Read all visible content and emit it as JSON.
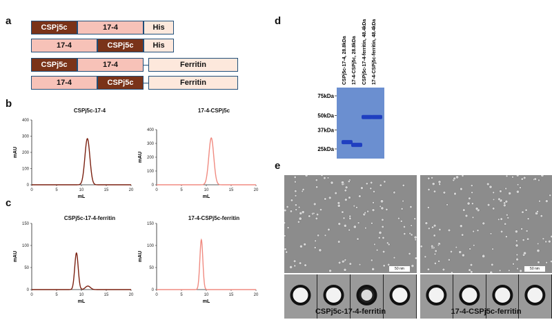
{
  "panel_labels": {
    "a": "a",
    "b": "b",
    "c": "c",
    "d": "d",
    "e": "e"
  },
  "constructs": [
    {
      "segments": [
        {
          "label": "CSPj5c",
          "color": "#7a3319",
          "text_color": "#ffffff"
        },
        {
          "label": "17-4",
          "color": "#f7c2b8",
          "text_color": "#111111"
        },
        {
          "label": "His",
          "color": "#fde8dc",
          "text_color": "#111111"
        }
      ]
    },
    {
      "segments": [
        {
          "label": "17-4",
          "color": "#f7c2b8",
          "text_color": "#111111"
        },
        {
          "label": "CSPj5c",
          "color": "#7a3319",
          "text_color": "#ffffff"
        },
        {
          "label": "His",
          "color": "#fde8dc",
          "text_color": "#111111"
        }
      ]
    },
    {
      "segments": [
        {
          "label": "CSPj5c",
          "color": "#7a3319",
          "text_color": "#ffffff"
        },
        {
          "label": "17-4",
          "color": "#f7c2b8",
          "text_color": "#111111"
        },
        {
          "label": "Ferritin",
          "color": "#fde8dc",
          "text_color": "#111111"
        }
      ]
    },
    {
      "segments": [
        {
          "label": "17-4",
          "color": "#f7c2b8",
          "text_color": "#111111"
        },
        {
          "label": "CSPj5c",
          "color": "#7a3319",
          "text_color": "#ffffff"
        },
        {
          "label": "Ferritin",
          "color": "#fde8dc",
          "text_color": "#111111"
        }
      ]
    }
  ],
  "chart_data": [
    {
      "type": "line",
      "title": "CSPj5c-17-4",
      "xlabel": "mL",
      "ylabel": "mAU",
      "xlim": [
        0,
        20
      ],
      "ylim": [
        0,
        400
      ],
      "xticks": [
        0,
        5,
        10,
        15,
        20
      ],
      "yticks": [
        0,
        100,
        200,
        300,
        400
      ],
      "color": "#7a1f0f",
      "series": [
        {
          "peak_x": 11.2,
          "peak_y": 285,
          "width": 0.5
        }
      ]
    },
    {
      "type": "line",
      "title": "17-4-CSPj5c",
      "xlabel": "mL",
      "ylabel": "mAU",
      "xlim": [
        0,
        20
      ],
      "ylim": [
        0,
        400
      ],
      "xticks": [
        0,
        5,
        10,
        15,
        20
      ],
      "yticks": [
        0,
        100,
        200,
        300,
        400
      ],
      "color": "#f08a80",
      "series": [
        {
          "peak_x": 11.0,
          "peak_y": 340,
          "width": 0.5
        }
      ]
    },
    {
      "type": "line",
      "title": "CSPj5c-17-4-ferritin",
      "xlabel": "mL",
      "ylabel": "mAU",
      "xlim": [
        0,
        20
      ],
      "ylim": [
        0,
        150
      ],
      "xticks": [
        0,
        5,
        10,
        15,
        20
      ],
      "yticks": [
        0,
        50,
        100,
        150
      ],
      "color": "#7a1f0f",
      "series": [
        {
          "peak_x": 9.0,
          "peak_y": 83,
          "width": 0.35
        },
        {
          "peak_x": 11.3,
          "peak_y": 8,
          "width": 0.5
        }
      ]
    },
    {
      "type": "line",
      "title": "17-4-CSPj5c-ferritin",
      "xlabel": "mL",
      "ylabel": "mAU",
      "xlim": [
        0,
        20
      ],
      "ylim": [
        0,
        150
      ],
      "xticks": [
        0,
        5,
        10,
        15,
        20
      ],
      "yticks": [
        0,
        50,
        100,
        150
      ],
      "color": "#f08a80",
      "series": [
        {
          "peak_x": 9.0,
          "peak_y": 113,
          "width": 0.3
        }
      ]
    }
  ],
  "gel": {
    "lanes": [
      "CSPj5c-17-4, 28.8kDa",
      "17-4-CSPj5c, 28.8kDa",
      "CSPj5c-17-4-ferritin, 48.4kDa",
      "17-4-CSPj5c-ferritin, 48.4kDa"
    ],
    "markers": [
      "75kDa",
      "50kDa",
      "37kDa",
      "25kDa"
    ],
    "marker_kda": [
      75,
      50,
      37,
      25
    ],
    "band_kda": [
      28.8,
      28.8,
      48.4,
      48.4
    ],
    "background": "#6b8fd0",
    "band_color": "#1f3fc0"
  },
  "em": {
    "captions": [
      "CSPj5c-17-4-ferritin",
      "17-4-CSPj5c-ferritin"
    ],
    "scale_bar_label": "50 nm"
  }
}
